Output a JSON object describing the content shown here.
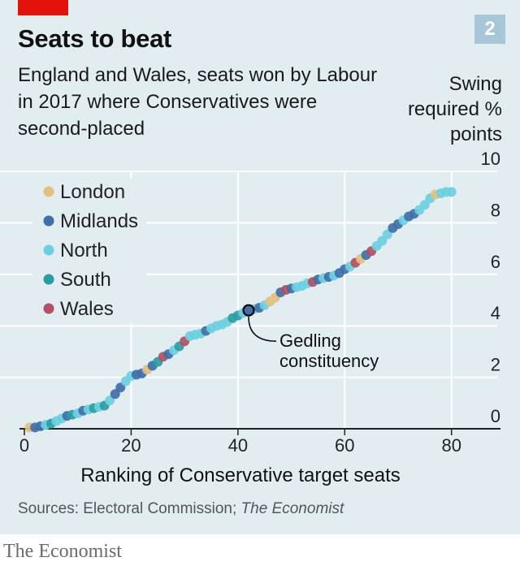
{
  "header": {
    "title": "Seats to beat",
    "chart_number": "2",
    "subtitle": "England and Wales, seats won by Labour in 2017 where Conservatives were second-placed",
    "y_axis_title": "Swing required % points"
  },
  "footer": {
    "source_prefix": "Sources: Electoral Commission; ",
    "source_italic": "The Economist",
    "brand": "The Economist"
  },
  "colors": {
    "London": "#e3c07f",
    "Midlands": "#3f6fa8",
    "North": "#6ccfe0",
    "South": "#2a9da3",
    "Wales": "#b34f62",
    "background": "#e2edf2",
    "accent": "#e3120b"
  },
  "chart_data": {
    "type": "scatter",
    "title": "Seats to beat",
    "xlabel": "Ranking of Conservative target seats",
    "ylabel": "Swing required % points",
    "xlim": [
      0,
      84
    ],
    "ylim": [
      0,
      10
    ],
    "x_ticks": [
      "0",
      "20",
      "40",
      "60",
      "80"
    ],
    "y_ticks": [
      "0",
      "2",
      "4",
      "6",
      "8",
      "10"
    ],
    "grid": true,
    "legend_position": "top-left",
    "legend": [
      "London",
      "Midlands",
      "North",
      "South",
      "Wales"
    ],
    "annotation": {
      "text": "Gedling constituency",
      "x": 42,
      "y": 4.6
    },
    "points": [
      {
        "x": 1,
        "y": 0.05,
        "region": "London"
      },
      {
        "x": 2,
        "y": 0.05,
        "region": "Midlands"
      },
      {
        "x": 3,
        "y": 0.1,
        "region": "Midlands"
      },
      {
        "x": 4,
        "y": 0.15,
        "region": "North"
      },
      {
        "x": 5,
        "y": 0.2,
        "region": "South"
      },
      {
        "x": 6,
        "y": 0.3,
        "region": "North"
      },
      {
        "x": 7,
        "y": 0.4,
        "region": "North"
      },
      {
        "x": 8,
        "y": 0.5,
        "region": "Midlands"
      },
      {
        "x": 9,
        "y": 0.55,
        "region": "South"
      },
      {
        "x": 10,
        "y": 0.6,
        "region": "North"
      },
      {
        "x": 11,
        "y": 0.7,
        "region": "Midlands"
      },
      {
        "x": 12,
        "y": 0.75,
        "region": "North"
      },
      {
        "x": 13,
        "y": 0.8,
        "region": "South"
      },
      {
        "x": 14,
        "y": 0.85,
        "region": "North"
      },
      {
        "x": 15,
        "y": 0.9,
        "region": "South"
      },
      {
        "x": 16,
        "y": 1.1,
        "region": "North"
      },
      {
        "x": 17,
        "y": 1.35,
        "region": "Midlands"
      },
      {
        "x": 18,
        "y": 1.6,
        "region": "Midlands"
      },
      {
        "x": 19,
        "y": 1.85,
        "region": "North"
      },
      {
        "x": 20,
        "y": 2.05,
        "region": "North"
      },
      {
        "x": 21,
        "y": 2.1,
        "region": "Midlands"
      },
      {
        "x": 22,
        "y": 2.15,
        "region": "Midlands"
      },
      {
        "x": 23,
        "y": 2.3,
        "region": "London"
      },
      {
        "x": 24,
        "y": 2.45,
        "region": "Midlands"
      },
      {
        "x": 25,
        "y": 2.6,
        "region": "South"
      },
      {
        "x": 26,
        "y": 2.8,
        "region": "Wales"
      },
      {
        "x": 27,
        "y": 2.9,
        "region": "Midlands"
      },
      {
        "x": 28,
        "y": 3.05,
        "region": "North"
      },
      {
        "x": 29,
        "y": 3.2,
        "region": "South"
      },
      {
        "x": 30,
        "y": 3.4,
        "region": "Wales"
      },
      {
        "x": 31,
        "y": 3.6,
        "region": "North"
      },
      {
        "x": 32,
        "y": 3.65,
        "region": "North"
      },
      {
        "x": 33,
        "y": 3.7,
        "region": "North"
      },
      {
        "x": 34,
        "y": 3.8,
        "region": "Midlands"
      },
      {
        "x": 35,
        "y": 3.9,
        "region": "North"
      },
      {
        "x": 36,
        "y": 4.0,
        "region": "North"
      },
      {
        "x": 37,
        "y": 4.05,
        "region": "North"
      },
      {
        "x": 38,
        "y": 4.15,
        "region": "North"
      },
      {
        "x": 39,
        "y": 4.3,
        "region": "South"
      },
      {
        "x": 40,
        "y": 4.4,
        "region": "South"
      },
      {
        "x": 41,
        "y": 4.5,
        "region": "North"
      },
      {
        "x": 43,
        "y": 4.65,
        "region": "North"
      },
      {
        "x": 44,
        "y": 4.7,
        "region": "Midlands"
      },
      {
        "x": 45,
        "y": 4.8,
        "region": "North"
      },
      {
        "x": 46,
        "y": 4.95,
        "region": "London"
      },
      {
        "x": 47,
        "y": 5.1,
        "region": "London"
      },
      {
        "x": 48,
        "y": 5.3,
        "region": "Midlands"
      },
      {
        "x": 49,
        "y": 5.4,
        "region": "Wales"
      },
      {
        "x": 50,
        "y": 5.45,
        "region": "Midlands"
      },
      {
        "x": 51,
        "y": 5.5,
        "region": "North"
      },
      {
        "x": 52,
        "y": 5.55,
        "region": "North"
      },
      {
        "x": 53,
        "y": 5.65,
        "region": "North"
      },
      {
        "x": 54,
        "y": 5.7,
        "region": "Wales"
      },
      {
        "x": 55,
        "y": 5.8,
        "region": "Midlands"
      },
      {
        "x": 56,
        "y": 5.85,
        "region": "North"
      },
      {
        "x": 57,
        "y": 5.9,
        "region": "Midlands"
      },
      {
        "x": 58,
        "y": 5.95,
        "region": "North"
      },
      {
        "x": 59,
        "y": 6.05,
        "region": "Midlands"
      },
      {
        "x": 60,
        "y": 6.2,
        "region": "Midlands"
      },
      {
        "x": 61,
        "y": 6.3,
        "region": "North"
      },
      {
        "x": 62,
        "y": 6.45,
        "region": "Wales"
      },
      {
        "x": 63,
        "y": 6.6,
        "region": "London"
      },
      {
        "x": 64,
        "y": 6.75,
        "region": "Midlands"
      },
      {
        "x": 65,
        "y": 6.9,
        "region": "Wales"
      },
      {
        "x": 66,
        "y": 7.1,
        "region": "North"
      },
      {
        "x": 67,
        "y": 7.3,
        "region": "North"
      },
      {
        "x": 68,
        "y": 7.55,
        "region": "North"
      },
      {
        "x": 69,
        "y": 7.8,
        "region": "Midlands"
      },
      {
        "x": 70,
        "y": 7.95,
        "region": "Midlands"
      },
      {
        "x": 71,
        "y": 8.1,
        "region": "North"
      },
      {
        "x": 72,
        "y": 8.25,
        "region": "Midlands"
      },
      {
        "x": 73,
        "y": 8.35,
        "region": "Midlands"
      },
      {
        "x": 74,
        "y": 8.5,
        "region": "North"
      },
      {
        "x": 75,
        "y": 8.7,
        "region": "North"
      },
      {
        "x": 76,
        "y": 8.95,
        "region": "North"
      },
      {
        "x": 77,
        "y": 9.1,
        "region": "London"
      },
      {
        "x": 78,
        "y": 9.15,
        "region": "North"
      },
      {
        "x": 79,
        "y": 9.2,
        "region": "North"
      },
      {
        "x": 80,
        "y": 9.2,
        "region": "North"
      },
      {
        "x": 42,
        "y": 4.6,
        "region": "Midlands",
        "highlight": true
      }
    ]
  }
}
